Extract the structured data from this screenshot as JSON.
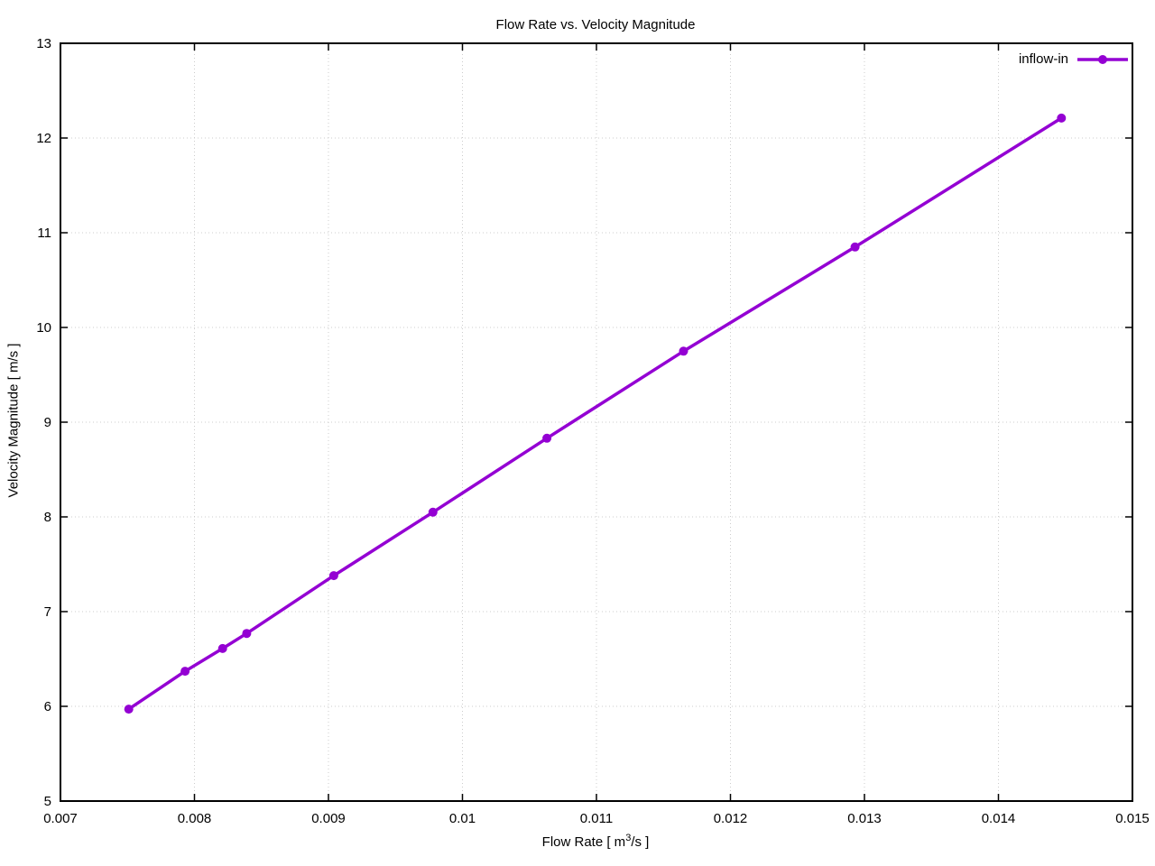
{
  "page": {
    "background": "#ffffff"
  },
  "legend": {
    "label": "inflow-in"
  },
  "chart_data": {
    "type": "line",
    "title": "Flow Rate vs. Velocity Magnitude",
    "xlabel": "Flow Rate [ m^3/s ]",
    "xlabel_parts": {
      "prefix": "Flow Rate [ m",
      "sup": "3",
      "suffix": "/s ]"
    },
    "ylabel": "Velocity Magnitude [ m/s ]",
    "xlim": [
      0.007,
      0.015
    ],
    "ylim": [
      5,
      13
    ],
    "grid": true,
    "legend_position": "top-right-inside",
    "x_ticks": [
      {
        "v": 0.007,
        "label": "0.007"
      },
      {
        "v": 0.008,
        "label": "0.008"
      },
      {
        "v": 0.009,
        "label": "0.009"
      },
      {
        "v": 0.01,
        "label": "0.01"
      },
      {
        "v": 0.011,
        "label": "0.011"
      },
      {
        "v": 0.012,
        "label": "0.012"
      },
      {
        "v": 0.013,
        "label": "0.013"
      },
      {
        "v": 0.014,
        "label": "0.014"
      },
      {
        "v": 0.015,
        "label": "0.015"
      }
    ],
    "y_ticks": [
      {
        "v": 5,
        "label": "5"
      },
      {
        "v": 6,
        "label": "6"
      },
      {
        "v": 7,
        "label": "7"
      },
      {
        "v": 8,
        "label": "8"
      },
      {
        "v": 9,
        "label": "9"
      },
      {
        "v": 10,
        "label": "10"
      },
      {
        "v": 11,
        "label": "11"
      },
      {
        "v": 12,
        "label": "12"
      },
      {
        "v": 13,
        "label": "13"
      }
    ],
    "series": [
      {
        "name": "inflow-in",
        "color": "#9400d3",
        "marker": "circle",
        "points": [
          [
            0.00751,
            5.97
          ],
          [
            0.00793,
            6.37
          ],
          [
            0.00821,
            6.61
          ],
          [
            0.00839,
            6.77
          ],
          [
            0.00904,
            7.38
          ],
          [
            0.00978,
            8.05
          ],
          [
            0.01063,
            8.83
          ],
          [
            0.01165,
            9.75
          ],
          [
            0.01293,
            10.85
          ],
          [
            0.01447,
            12.21
          ]
        ]
      }
    ]
  }
}
